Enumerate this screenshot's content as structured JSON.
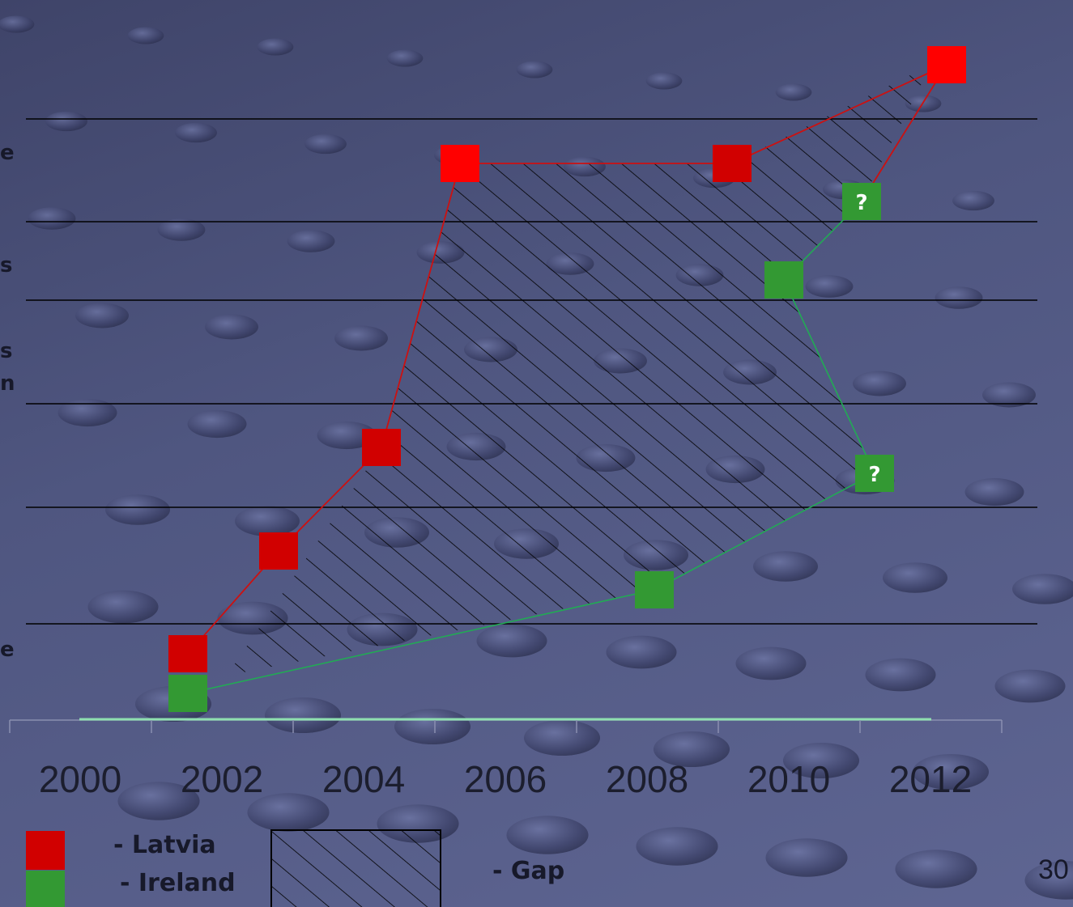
{
  "colors": {
    "latvia": "#d10000",
    "latvia_bright": "#ff0000",
    "ireland": "#339933",
    "line_latvia": "#cc1111",
    "line_ireland": "#22aa55"
  },
  "edge_text": [
    "e",
    "s",
    "s",
    "n",
    "e"
  ],
  "chart_data": {
    "type": "line",
    "x_ticks": [
      "2000",
      "2002",
      "2004",
      "2006",
      "2008",
      "2010",
      "2012"
    ],
    "xlim": [
      2000,
      2012
    ],
    "grid": "horizontal",
    "series": [
      {
        "name": "Latvia",
        "color": "#d10000",
        "points": [
          {
            "x": 2001.5,
            "y": 0.3
          },
          {
            "x": 2002.8,
            "y": 1.6
          },
          {
            "x": 2004.2,
            "y": 2.6
          },
          {
            "x": 2005.3,
            "y": 5.8
          },
          {
            "x": 2009.1,
            "y": 5.8
          },
          {
            "x": 2012.3,
            "y": 6.8
          }
        ]
      },
      {
        "name": "Ireland",
        "color": "#339933",
        "points": [
          {
            "x": 2001.5,
            "y": 0.0
          },
          {
            "x": 2007.4,
            "y": 1.2
          },
          {
            "x": 2010.0,
            "y": 4.3
          },
          {
            "x": 2011.2,
            "y": 2.2,
            "label": "?"
          },
          {
            "x": 2010.2,
            "y": 4.3
          },
          {
            "x": 2011.0,
            "y": 5.1,
            "label": "?"
          }
        ]
      }
    ],
    "gap": "hatched region between Latvia and Ireland series",
    "legend": [
      {
        "label": "- Latvia",
        "color": "#d10000"
      },
      {
        "label": "- Ireland",
        "color": "#339933"
      },
      {
        "label": "- Gap",
        "pattern": "hatch"
      }
    ],
    "legend_placement": "bottom-left"
  },
  "page_number": "30"
}
